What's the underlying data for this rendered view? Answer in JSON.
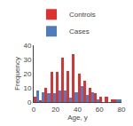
{
  "chart_data": {
    "type": "histogram",
    "bins": [
      0,
      5,
      10,
      15,
      20,
      25,
      30,
      35,
      40,
      45,
      50,
      55,
      60,
      65,
      70,
      80
    ],
    "series": [
      {
        "name": "Controls",
        "color": "#e03030",
        "values": [
          4,
          1,
          10,
          21,
          21,
          31,
          22,
          34,
          20,
          15,
          10,
          6,
          4,
          4,
          2
        ]
      },
      {
        "name": "Cases",
        "color": "#4d7dbf",
        "values": [
          8,
          7,
          6,
          6,
          8,
          8,
          3,
          7,
          11,
          5,
          7,
          2,
          0,
          0,
          2
        ]
      }
    ],
    "xlabel": "Age, y",
    "ylabel": "Frequency",
    "xlim": [
      0,
      80
    ],
    "xticks": [
      0,
      20,
      40,
      60,
      80
    ],
    "ylim": [
      0,
      40
    ],
    "yticks": [
      0,
      10,
      20,
      30,
      40
    ],
    "legend": "upper left",
    "grid": false
  }
}
